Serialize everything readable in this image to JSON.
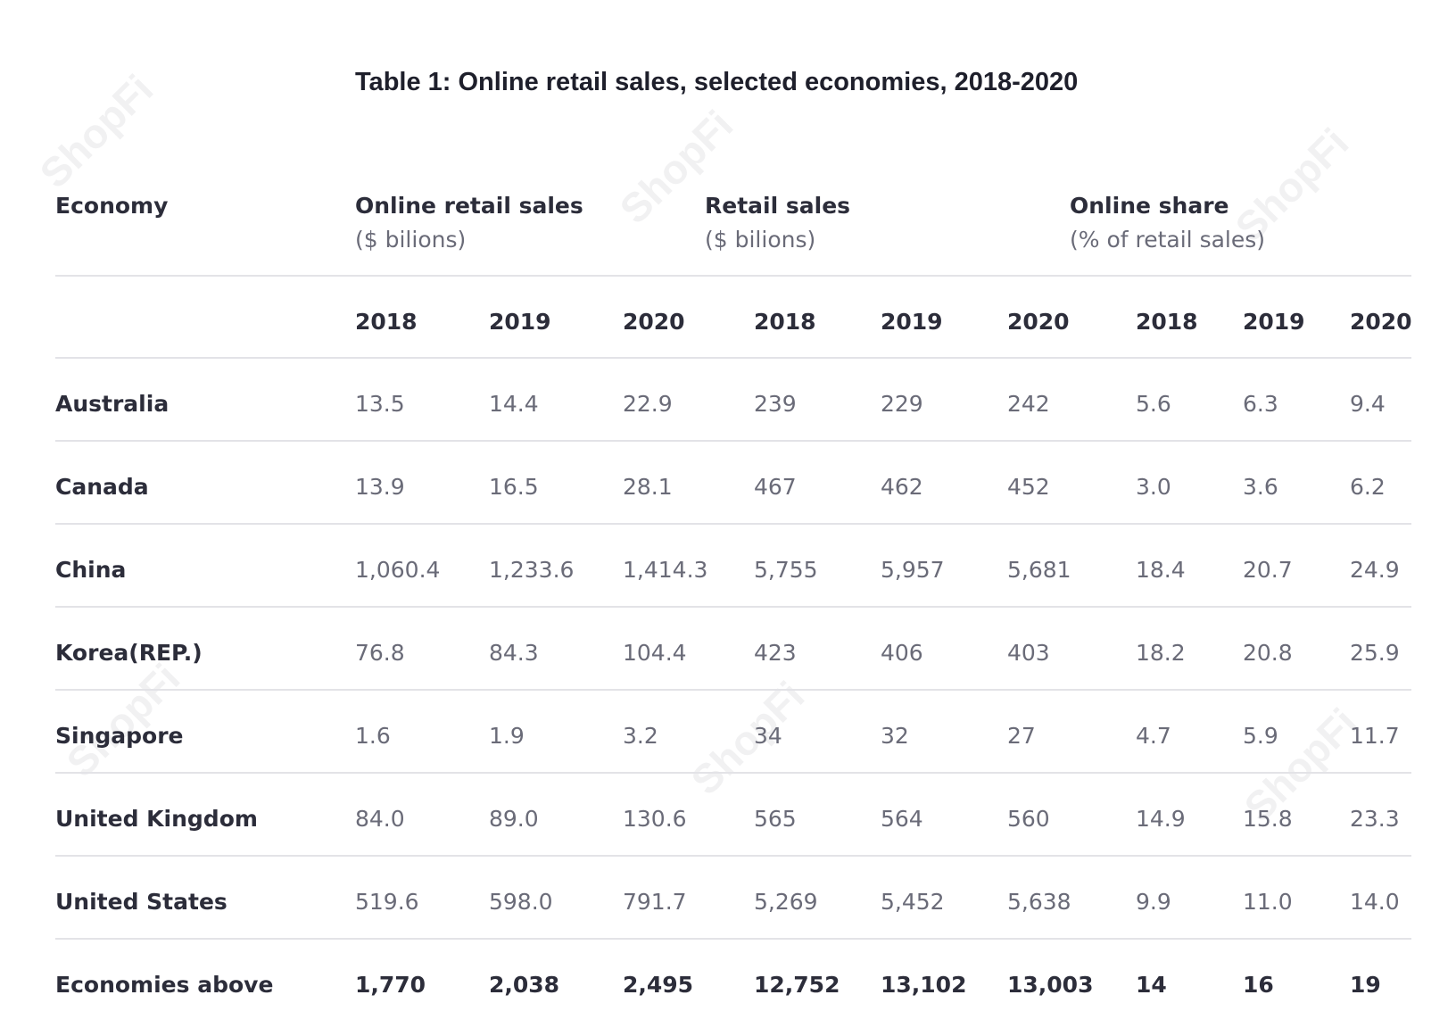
{
  "title": "Table 1: Online retail sales, selected economies, 2018-2020",
  "watermark": "ShopFi",
  "header": {
    "economy": "Economy",
    "groups": [
      {
        "title": "Online retail sales",
        "sub": "($ bilions)"
      },
      {
        "title": "Retail sales",
        "sub": "($ bilions)"
      },
      {
        "title": "Online share",
        "sub": "(% of retail sales)"
      }
    ],
    "years": [
      "2018",
      "2019",
      "2020",
      "2018",
      "2019",
      "2020",
      "2018",
      "2019",
      "2020"
    ]
  },
  "rows": [
    {
      "name": "Australia",
      "values": [
        "13.5",
        "14.4",
        "22.9",
        "239",
        "229",
        "242",
        "5.6",
        "6.3",
        "9.4"
      ]
    },
    {
      "name": "Canada",
      "values": [
        "13.9",
        "16.5",
        "28.1",
        "467",
        "462",
        "452",
        "3.0",
        "3.6",
        "6.2"
      ]
    },
    {
      "name": "China",
      "values": [
        "1,060.4",
        "1,233.6",
        "1,414.3",
        "5,755",
        "5,957",
        "5,681",
        "18.4",
        "20.7",
        "24.9"
      ]
    },
    {
      "name": "Korea(REP.)",
      "values": [
        "76.8",
        "84.3",
        "104.4",
        "423",
        "406",
        "403",
        "18.2",
        "20.8",
        "25.9"
      ]
    },
    {
      "name": "Singapore",
      "values": [
        "1.6",
        "1.9",
        "3.2",
        "34",
        "32",
        "27",
        "4.7",
        "5.9",
        "11.7"
      ]
    },
    {
      "name": "United Kingdom",
      "values": [
        "84.0",
        "89.0",
        "130.6",
        "565",
        "564",
        "560",
        "14.9",
        "15.8",
        "23.3"
      ]
    },
    {
      "name": "United States",
      "values": [
        "519.6",
        "598.0",
        "791.7",
        "5,269",
        "5,452",
        "5,638",
        "9.9",
        "11.0",
        "14.0"
      ]
    },
    {
      "name": "Economies above",
      "values": [
        "1,770",
        "2,038",
        "2,495",
        "12,752",
        "13,102",
        "13,003",
        "14",
        "16",
        "19"
      ]
    }
  ]
}
